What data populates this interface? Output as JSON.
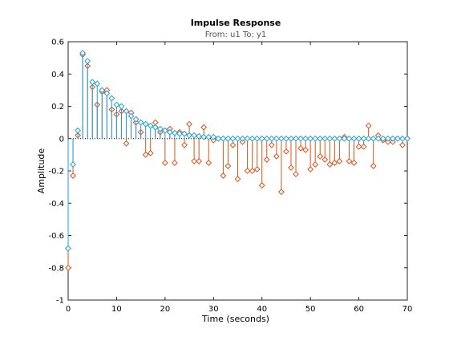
{
  "chart_data": {
    "type": "scatter",
    "title": "Impulse Response",
    "subtitle": "From: u1  To: y1",
    "xlabel": "Time (seconds)",
    "ylabel": "Amplitude",
    "xlim": [
      0,
      70
    ],
    "ylim": [
      -1,
      0.6
    ],
    "xticks": [
      0,
      10,
      20,
      30,
      40,
      50,
      60,
      70
    ],
    "yticks": [
      -1,
      -0.8,
      -0.6,
      -0.4,
      -0.2,
      0,
      0.2,
      0.4,
      0.6
    ],
    "xtick_labels": [
      "0",
      "10",
      "20",
      "30",
      "40",
      "50",
      "60",
      "70"
    ],
    "ytick_labels": [
      "-1",
      "-0.8",
      "-0.6",
      "-0.4",
      "-0.2",
      "0",
      "0.2",
      "0.4",
      "0.6"
    ],
    "grid": false,
    "style": "stem with diamond markers",
    "series": [
      {
        "color": "#1f9fd6",
        "x": [
          0,
          1,
          2,
          3,
          4,
          5,
          6,
          7,
          8,
          9,
          10,
          11,
          12,
          13,
          14,
          15,
          16,
          17,
          18,
          19,
          20,
          21,
          22,
          23,
          24,
          25,
          26,
          27,
          28,
          29,
          30,
          31,
          32,
          33,
          34,
          35,
          36,
          37,
          38,
          39,
          40,
          41,
          42,
          43,
          44,
          45,
          46,
          47,
          48,
          49,
          50,
          51,
          52,
          53,
          54,
          55,
          56,
          57,
          58,
          59,
          60,
          61,
          62,
          63,
          64,
          65,
          66,
          67,
          68,
          69,
          70
        ],
        "y": [
          -0.68,
          -0.16,
          0.05,
          0.53,
          0.48,
          0.35,
          0.34,
          0.3,
          0.28,
          0.25,
          0.21,
          0.2,
          0.17,
          0.14,
          0.12,
          0.1,
          0.09,
          0.08,
          0.07,
          0.06,
          0.05,
          0.04,
          0.035,
          0.03,
          0.03,
          0.02,
          0.02,
          0.015,
          0.01,
          0.01,
          0.01,
          0.0,
          0.0,
          0.0,
          0.0,
          0.0,
          0.0,
          0.0,
          0.0,
          0.0,
          0.0,
          0.0,
          0.0,
          0.0,
          0.0,
          0.0,
          0.0,
          0.0,
          0.0,
          0.0,
          0.0,
          0.0,
          0.0,
          0.0,
          0.0,
          0.0,
          0.0,
          0.0,
          0.0,
          0.0,
          0.0,
          0.0,
          0.0,
          0.0,
          0.0,
          0.0,
          0.0,
          0.0,
          0.0,
          0.0,
          0.0
        ]
      },
      {
        "color": "#d95319",
        "x": [
          0,
          1,
          2,
          3,
          4,
          5,
          6,
          7,
          8,
          9,
          10,
          11,
          12,
          13,
          14,
          15,
          16,
          17,
          18,
          19,
          20,
          21,
          22,
          23,
          24,
          25,
          26,
          27,
          28,
          29,
          30,
          31,
          32,
          33,
          34,
          35,
          36,
          37,
          38,
          39,
          40,
          41,
          42,
          43,
          44,
          45,
          46,
          47,
          48,
          49,
          50,
          51,
          52,
          53,
          54,
          55,
          56,
          57,
          58,
          59,
          60,
          61,
          62,
          63,
          64,
          65,
          66,
          67,
          68,
          69,
          70
        ],
        "y": [
          -0.8,
          -0.23,
          0.02,
          0.52,
          0.45,
          0.32,
          0.21,
          0.29,
          0.3,
          0.18,
          0.15,
          0.17,
          -0.03,
          0.16,
          0.1,
          0.04,
          -0.1,
          -0.09,
          0.1,
          0.04,
          -0.15,
          0.06,
          -0.15,
          0.04,
          -0.04,
          0.09,
          -0.14,
          -0.14,
          0.07,
          -0.15,
          -0.01,
          0.0,
          -0.23,
          -0.17,
          -0.04,
          -0.25,
          -0.02,
          -0.2,
          -0.2,
          -0.19,
          -0.29,
          -0.13,
          -0.04,
          -0.11,
          -0.33,
          -0.08,
          -0.18,
          -0.22,
          -0.06,
          -0.07,
          -0.19,
          -0.16,
          -0.11,
          -0.13,
          -0.16,
          -0.15,
          -0.14,
          0.01,
          -0.14,
          -0.15,
          -0.05,
          -0.05,
          0.08,
          -0.17,
          0.02,
          -0.01,
          -0.02,
          -0.02,
          0.0,
          -0.04,
          0.0
        ]
      }
    ]
  }
}
